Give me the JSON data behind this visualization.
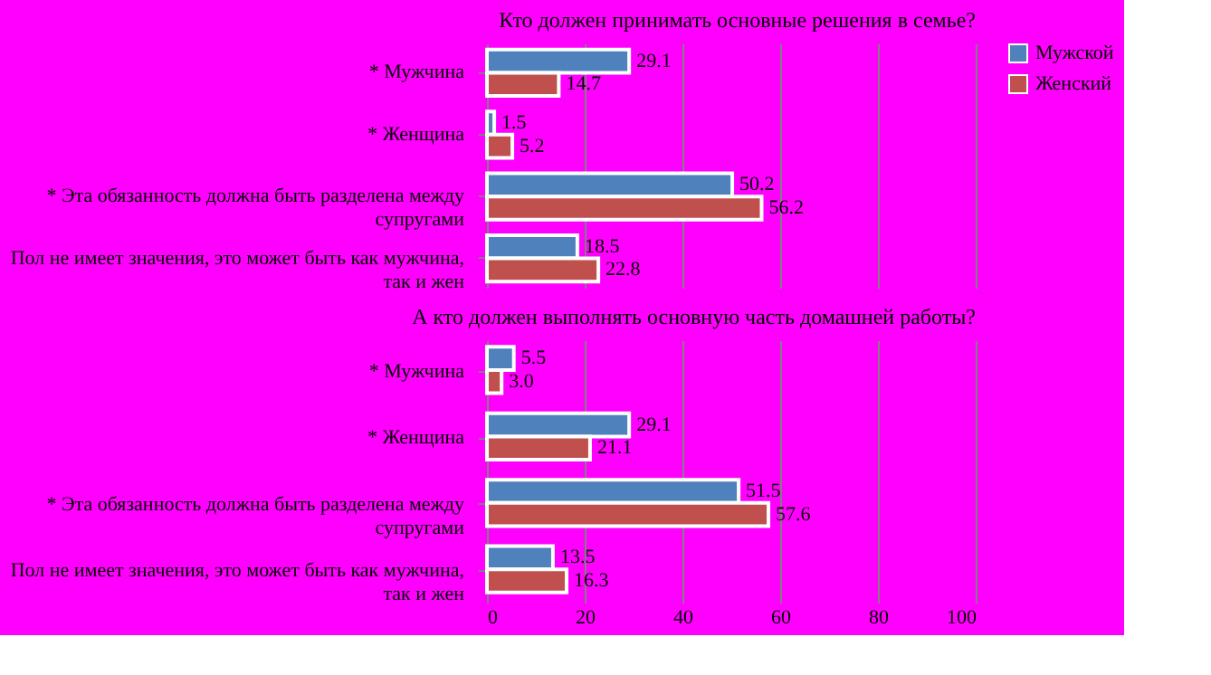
{
  "chart_data": [
    {
      "type": "bar",
      "orientation": "horizontal",
      "title": "Кто должен принимать основные решения в семье?",
      "categories": [
        "* Мужчина",
        "* Женщина",
        "* Эта обязанность должна быть разделена между супругами",
        "Пол не имеет значения, это может быть как мужчина, так и жен"
      ],
      "series": [
        {
          "name": "Мужской",
          "color": "#4f81bd",
          "values": [
            29.1,
            1.5,
            50.2,
            18.5
          ]
        },
        {
          "name": "Женский",
          "color": "#c0504d",
          "values": [
            14.7,
            5.2,
            56.2,
            22.8
          ]
        }
      ],
      "xlim": [
        0,
        100
      ],
      "xticks": [
        0,
        20,
        40,
        60,
        80,
        100
      ],
      "grid": "x",
      "legend": "right",
      "data_labels": true,
      "tick_labels": "y"
    },
    {
      "type": "bar",
      "orientation": "horizontal",
      "title": "А кто должен выполнять основную часть домашней работы?",
      "categories": [
        "* Мужчина",
        "* Женщина",
        "* Эта обязанность должна быть разделена между супругами",
        "Пол не имеет значения, это может быть как мужчина, так и жен"
      ],
      "series": [
        {
          "name": "Мужской",
          "color": "#4f81bd",
          "values": [
            5.5,
            29.1,
            51.5,
            13.5
          ]
        },
        {
          "name": "Женский",
          "color": "#c0504d",
          "values": [
            3.0,
            21.1,
            57.6,
            16.3
          ],
          "value_labels": [
            "3.0",
            "21.1",
            "57.6",
            "16.3"
          ]
        }
      ],
      "xlim": [
        0,
        100
      ],
      "xticks": [
        0,
        20,
        40,
        60,
        80,
        100
      ],
      "grid": "x",
      "legend": "right",
      "data_labels": true
    }
  ]
}
